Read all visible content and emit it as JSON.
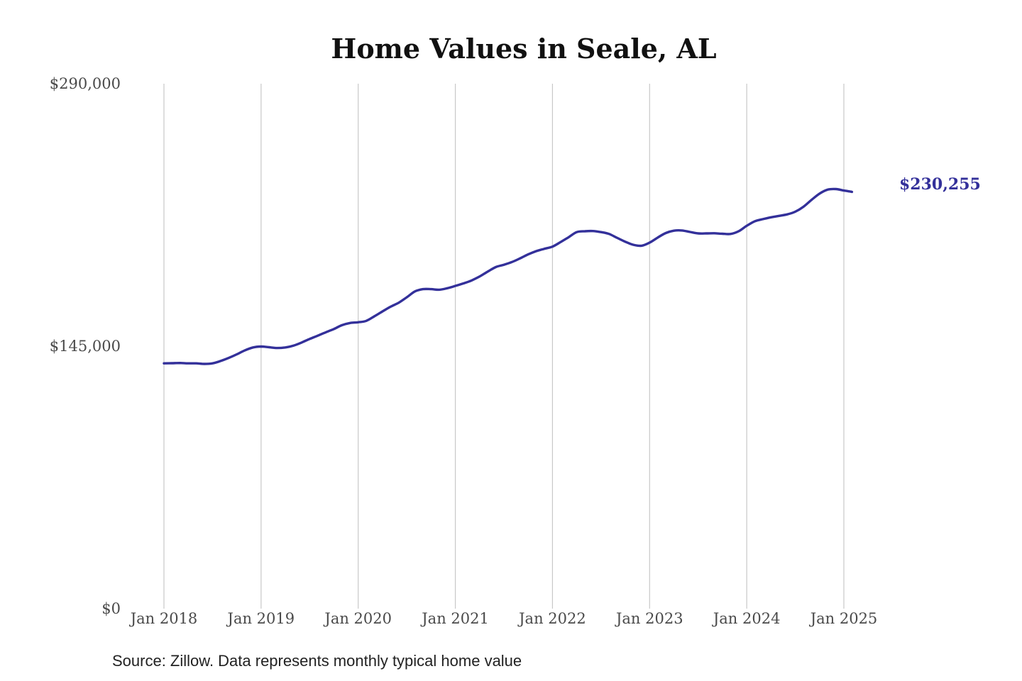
{
  "chart_data": {
    "type": "line",
    "title": "Home Values in Seale, AL",
    "xlabel": "",
    "ylabel": "",
    "x_tick_labels": [
      "Jan 2018",
      "Jan 2019",
      "Jan 2020",
      "Jan 2021",
      "Jan 2022",
      "Jan 2023",
      "Jan 2024",
      "Jan 2025"
    ],
    "y_tick_labels": [
      "$0",
      "$145,000",
      "$290,000"
    ],
    "y_tick_values": [
      0,
      145000,
      290000
    ],
    "ylim": [
      0,
      290000
    ],
    "x_start": "2018-01",
    "grid": "vertical lines at January of each year",
    "series": [
      {
        "end_label": "$230,255",
        "color": "#33309a",
        "points": [
          [
            "2018-01",
            135500
          ],
          [
            "2018-02",
            135600
          ],
          [
            "2018-03",
            135700
          ],
          [
            "2018-04",
            135500
          ],
          [
            "2018-05",
            135500
          ],
          [
            "2018-06",
            135200
          ],
          [
            "2018-07",
            135500
          ],
          [
            "2018-08",
            136800
          ],
          [
            "2018-09",
            138500
          ],
          [
            "2018-10",
            140500
          ],
          [
            "2018-11",
            142700
          ],
          [
            "2018-12",
            144300
          ],
          [
            "2019-01",
            144800
          ],
          [
            "2019-02",
            144400
          ],
          [
            "2019-03",
            144000
          ],
          [
            "2019-04",
            144300
          ],
          [
            "2019-05",
            145300
          ],
          [
            "2019-06",
            147000
          ],
          [
            "2019-07",
            149000
          ],
          [
            "2019-08",
            150800
          ],
          [
            "2019-09",
            152700
          ],
          [
            "2019-10",
            154500
          ],
          [
            "2019-11",
            156600
          ],
          [
            "2019-12",
            157800
          ],
          [
            "2020-01",
            158200
          ],
          [
            "2020-02",
            159000
          ],
          [
            "2020-03",
            161500
          ],
          [
            "2020-04",
            164200
          ],
          [
            "2020-05",
            166800
          ],
          [
            "2020-06",
            169000
          ],
          [
            "2020-07",
            172000
          ],
          [
            "2020-08",
            175200
          ],
          [
            "2020-09",
            176500
          ],
          [
            "2020-10",
            176500
          ],
          [
            "2020-11",
            176200
          ],
          [
            "2020-12",
            177000
          ],
          [
            "2021-01",
            178300
          ],
          [
            "2021-02",
            179700
          ],
          [
            "2021-03",
            181300
          ],
          [
            "2021-04",
            183500
          ],
          [
            "2021-05",
            186200
          ],
          [
            "2021-06",
            188700
          ],
          [
            "2021-07",
            190000
          ],
          [
            "2021-08",
            191500
          ],
          [
            "2021-09",
            193500
          ],
          [
            "2021-10",
            195700
          ],
          [
            "2021-11",
            197500
          ],
          [
            "2021-12",
            198800
          ],
          [
            "2022-01",
            200000
          ],
          [
            "2022-02",
            202500
          ],
          [
            "2022-03",
            205200
          ],
          [
            "2022-04",
            208000
          ],
          [
            "2022-05",
            208500
          ],
          [
            "2022-06",
            208600
          ],
          [
            "2022-07",
            208000
          ],
          [
            "2022-08",
            207000
          ],
          [
            "2022-09",
            204800
          ],
          [
            "2022-10",
            202700
          ],
          [
            "2022-11",
            201000
          ],
          [
            "2022-12",
            200500
          ],
          [
            "2023-01",
            202200
          ],
          [
            "2023-02",
            205000
          ],
          [
            "2023-03",
            207500
          ],
          [
            "2023-04",
            208800
          ],
          [
            "2023-05",
            208900
          ],
          [
            "2023-06",
            208100
          ],
          [
            "2023-07",
            207300
          ],
          [
            "2023-08",
            207300
          ],
          [
            "2023-09",
            207400
          ],
          [
            "2023-10",
            207100
          ],
          [
            "2023-11",
            207000
          ],
          [
            "2023-12",
            208500
          ],
          [
            "2024-01",
            211500
          ],
          [
            "2024-02",
            214000
          ],
          [
            "2024-03",
            215200
          ],
          [
            "2024-04",
            216200
          ],
          [
            "2024-05",
            217000
          ],
          [
            "2024-06",
            217800
          ],
          [
            "2024-07",
            219300
          ],
          [
            "2024-08",
            222000
          ],
          [
            "2024-09",
            225800
          ],
          [
            "2024-10",
            229300
          ],
          [
            "2024-11",
            231500
          ],
          [
            "2024-12",
            231800
          ],
          [
            "2025-01",
            231000
          ],
          [
            "2025-02",
            230255
          ]
        ]
      }
    ]
  },
  "footer": {
    "source": "Source: Zillow. Data represents monthly typical home value"
  }
}
